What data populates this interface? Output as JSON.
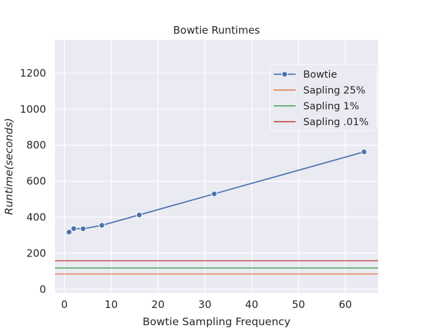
{
  "chart_data": {
    "type": "line",
    "title": "Bowtie Runtimes",
    "xlabel": "Bowtie Sampling Frequency",
    "ylabel": "Runtime(seconds)",
    "xlim": [
      -2,
      67
    ],
    "ylim": [
      -20,
      1385
    ],
    "xticks": [
      0,
      10,
      20,
      30,
      40,
      50,
      60
    ],
    "yticks": [
      0,
      200,
      400,
      600,
      800,
      1000,
      1200
    ],
    "grid": true,
    "legend_position": "top-right",
    "series": [
      {
        "name": "Bowtie",
        "color": "#4c72b0",
        "marker": "circle",
        "x": [
          1,
          2,
          4,
          8,
          16,
          32,
          64
        ],
        "y": [
          318,
          337,
          336,
          355,
          413,
          530,
          763
        ]
      }
    ],
    "hlines": [
      {
        "name": "Sapling 25%",
        "color": "#dd8452",
        "y": 85
      },
      {
        "name": "Sapling 1%",
        "color": "#55a868",
        "y": 118
      },
      {
        "name": "Sapling .01%",
        "color": "#c44e52",
        "y": 158
      }
    ]
  }
}
